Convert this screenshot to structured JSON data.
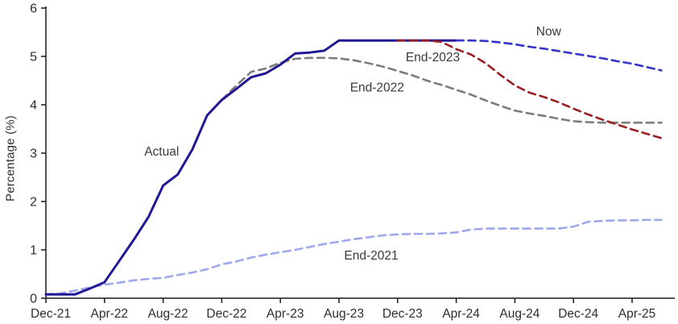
{
  "chart_data": {
    "type": "line",
    "title": "",
    "xlabel": "",
    "ylabel": "Percentage (%)",
    "ylim": [
      0,
      6
    ],
    "yticks": [
      0,
      1,
      2,
      3,
      4,
      5,
      6
    ],
    "grid": "off",
    "legend": "inline-labels",
    "x_unit": "months since Dec-2021 (monthly points)",
    "xticks": [
      {
        "label": "Dec-21",
        "t": 0
      },
      {
        "label": "Apr-22",
        "t": 4
      },
      {
        "label": "Aug-22",
        "t": 8
      },
      {
        "label": "Dec-22",
        "t": 12
      },
      {
        "label": "Apr-23",
        "t": 16
      },
      {
        "label": "Aug-23",
        "t": 20
      },
      {
        "label": "Dec-23",
        "t": 24
      },
      {
        "label": "Apr-24",
        "t": 28
      },
      {
        "label": "Aug-24",
        "t": 32
      },
      {
        "label": "Dec-24",
        "t": 36
      },
      {
        "label": "Apr-25",
        "t": 40
      }
    ],
    "series": [
      {
        "name": "End-2021",
        "style": "dashed",
        "color": "#9fa8ea",
        "width": 2.6,
        "start_t": 0,
        "values": [
          0.08,
          0.1,
          0.16,
          0.22,
          0.28,
          0.32,
          0.37,
          0.4,
          0.42,
          0.48,
          0.53,
          0.6,
          0.7,
          0.76,
          0.84,
          0.9,
          0.95,
          1.0,
          1.06,
          1.12,
          1.17,
          1.22,
          1.26,
          1.3,
          1.32,
          1.33,
          1.33,
          1.34,
          1.36,
          1.42,
          1.44,
          1.44,
          1.44,
          1.44,
          1.44,
          1.44,
          1.48,
          1.58,
          1.6,
          1.61,
          1.61,
          1.62,
          1.62
        ]
      },
      {
        "name": "End-2022",
        "style": "dashed",
        "color": "#7d7d7d",
        "width": 2.6,
        "start_t": 12,
        "values": [
          4.1,
          4.4,
          4.68,
          4.75,
          4.87,
          4.95,
          4.97,
          4.97,
          4.96,
          4.92,
          4.86,
          4.79,
          4.7,
          4.61,
          4.5,
          4.41,
          4.31,
          4.21,
          4.09,
          3.98,
          3.88,
          3.82,
          3.77,
          3.71,
          3.66,
          3.64,
          3.63,
          3.63,
          3.63,
          3.63,
          3.63
        ]
      },
      {
        "name": "Actual",
        "style": "solid",
        "color": "#211896",
        "width": 3,
        "start_t": 0,
        "values": [
          0.08,
          0.08,
          0.08,
          0.2,
          0.33,
          0.77,
          1.21,
          1.68,
          2.33,
          2.56,
          3.08,
          3.78,
          4.1,
          4.33,
          4.57,
          4.65,
          4.83,
          5.06,
          5.08,
          5.12,
          5.33,
          5.33,
          5.33,
          5.33,
          5.33,
          5.33,
          5.33,
          5.33,
          5.33
        ]
      },
      {
        "name": "End-2023",
        "style": "dashed",
        "color": "#9b2025",
        "width": 2.6,
        "start_t": 24,
        "values": [
          5.33,
          5.33,
          5.33,
          5.3,
          5.15,
          5.04,
          4.86,
          4.62,
          4.4,
          4.25,
          4.16,
          4.05,
          3.92,
          3.8,
          3.69,
          3.59,
          3.49,
          3.4,
          3.31
        ]
      },
      {
        "name": "Now",
        "style": "dashed",
        "color": "#3434c8",
        "width": 2.6,
        "start_t": 28,
        "values": [
          5.33,
          5.33,
          5.32,
          5.29,
          5.25,
          5.2,
          5.16,
          5.11,
          5.06,
          5.01,
          4.96,
          4.9,
          4.85,
          4.78,
          4.71
        ]
      }
    ],
    "annotations": [
      {
        "text": "Actual",
        "t": 7.9,
        "v": 3.03
      },
      {
        "text": "End-2021",
        "t": 22.2,
        "v": 0.88
      },
      {
        "text": "End-2022",
        "t": 22.6,
        "v": 4.36
      },
      {
        "text": "End-2023",
        "t": 26.4,
        "v": 4.98
      },
      {
        "text": "Now",
        "t": 34.3,
        "v": 5.52
      }
    ],
    "axis_color": "#1a1a1a",
    "tick_label_color": "#2e2e2e",
    "annotation_color": "#3a3a3a"
  }
}
